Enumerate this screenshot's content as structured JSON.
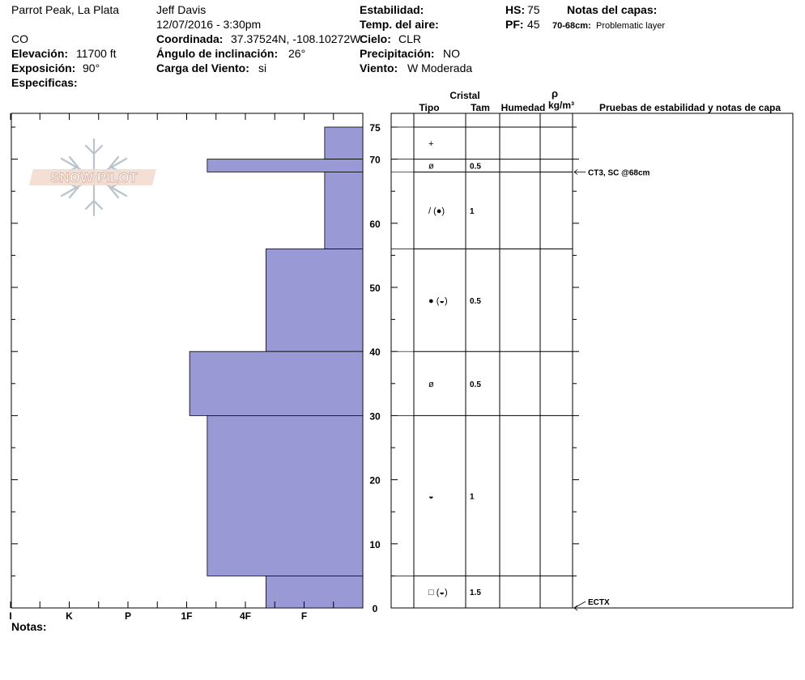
{
  "header": {
    "location": "Parrot Peak, La Plata",
    "state": "CO",
    "elevation_label": "Elevación:",
    "elevation_value": "11700 ft",
    "aspect_label": "Exposición:",
    "aspect_value": "90°",
    "specifics_label": "Especificas:",
    "observer": "Jeff Davis",
    "datetime": "12/07/2016 - 3:30pm",
    "coord_label": "Coordinada:",
    "coord_value": "37.37524N, -108.10272W",
    "slope_label": "Ángulo de inclinación:",
    "slope_value": "26°",
    "wind_load_label": "Carga del Viento:",
    "wind_load_value": "si",
    "stability_label": "Estabilidad:",
    "air_temp_label": "Temp. del aire:",
    "sky_label": "Cielo:",
    "sky_value": "CLR",
    "precip_label": "Precipitación:",
    "precip_value": "NO",
    "wind_label": "Viento:",
    "wind_value": "W Moderada",
    "hs_label": "HS:",
    "hs_value": "75",
    "pf_label": "PF:",
    "pf_value": "45",
    "layer_notes_label": "Notas del capas:",
    "layer_note_range": "70-68cm:",
    "layer_note_text": "Problematic layer"
  },
  "logo_text": "SNOW PILOT",
  "footer": {
    "notes_label": "Notas:"
  },
  "table_headers": {
    "crystal": "Cristal",
    "type": "Tipo",
    "size": "Tam",
    "moisture": "Humedad",
    "rho": "ρ",
    "density_unit": "kg/m³",
    "tests": "Pruebas de estabilidad y notas de capa"
  },
  "chart_data": {
    "type": "bar",
    "orientation": "horizontal",
    "title": "",
    "xlabel": "",
    "ylabel": "",
    "ylim": [
      0,
      75
    ],
    "y_ticks": [
      0,
      10,
      20,
      30,
      40,
      50,
      60,
      70,
      75
    ],
    "hardness_scale": [
      "I",
      "K",
      "P",
      "1F",
      "4F",
      "F"
    ],
    "hardness_scale_values": [
      6,
      5,
      4,
      3,
      2,
      1
    ],
    "bar_color": "#9999d6",
    "layers": [
      {
        "top": 75,
        "bottom": 70,
        "hardness": 0.65
      },
      {
        "top": 70,
        "bottom": 68,
        "hardness": 2.65
      },
      {
        "top": 68,
        "bottom": 56,
        "hardness": 0.65
      },
      {
        "top": 56,
        "bottom": 40,
        "hardness": 1.65
      },
      {
        "top": 40,
        "bottom": 30,
        "hardness": 2.95
      },
      {
        "top": 30,
        "bottom": 5,
        "hardness": 2.65
      },
      {
        "top": 5,
        "bottom": 0,
        "hardness": 1.65
      }
    ],
    "layer_boundaries": [
      75,
      70,
      68,
      56,
      40,
      30,
      5,
      0
    ],
    "crystals": [
      {
        "depth": 72.5,
        "symbol": "+",
        "size": ""
      },
      {
        "depth": 69,
        "symbol": "ø",
        "size": "0.5"
      },
      {
        "depth": 62,
        "symbol": "/ (●)",
        "size": "1"
      },
      {
        "depth": 48,
        "symbol": "● (◒)",
        "size": "0.5"
      },
      {
        "depth": 35,
        "symbol": "ø",
        "size": "0.5"
      },
      {
        "depth": 17.5,
        "symbol": "◒",
        "size": "1"
      },
      {
        "depth": 2.5,
        "symbol": "□ (◒)",
        "size": "1.5"
      }
    ],
    "test_notes": [
      {
        "depth": 68,
        "text": "CT3, SC @68cm"
      },
      {
        "depth": 0,
        "text": "ECTX"
      }
    ]
  }
}
